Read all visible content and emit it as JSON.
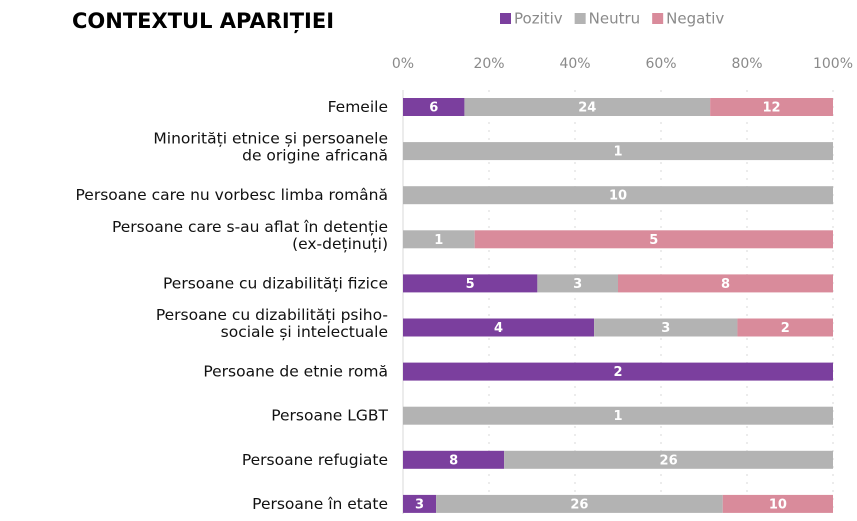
{
  "chart_data": {
    "type": "bar",
    "orientation": "horizontal",
    "stacked": "percent",
    "title": "CONTEXTUL  APARIȚIEI",
    "categories": [
      [
        "Femeile"
      ],
      [
        "Minorități etnice și persoanele",
        "de origine africană"
      ],
      [
        "Persoane care nu vorbesc limba română"
      ],
      [
        "Persoane care s-au aflat în detenție",
        "(ex-deținuți)"
      ],
      [
        "Persoane cu dizabilități fizice"
      ],
      [
        "Persoane cu dizabilități psiho-",
        "sociale și intelectuale"
      ],
      [
        "Persoane de etnie romă"
      ],
      [
        "Persoane LGBT"
      ],
      [
        "Persoane refugiate"
      ],
      [
        "Persoane în etate"
      ]
    ],
    "series": [
      {
        "name": "Pozitiv",
        "color": "#7b3f9e",
        "values": [
          6,
          null,
          null,
          null,
          5,
          4,
          2,
          null,
          8,
          3
        ]
      },
      {
        "name": "Neutru",
        "color": "#b3b3b3",
        "values": [
          24,
          1,
          10,
          1,
          3,
          3,
          null,
          1,
          26,
          26
        ]
      },
      {
        "name": "Negativ",
        "color": "#d98b9b",
        "values": [
          12,
          null,
          null,
          5,
          8,
          2,
          null,
          null,
          null,
          10
        ]
      }
    ],
    "xlim": [
      0,
      100
    ],
    "xticks": [
      {
        "value": 0,
        "label": "0%"
      },
      {
        "value": 20,
        "label": "20%"
      },
      {
        "value": 40,
        "label": "40%"
      },
      {
        "value": 60,
        "label": "60%"
      },
      {
        "value": 80,
        "label": "80%"
      },
      {
        "value": 100,
        "label": "100%"
      }
    ],
    "legend": "top"
  }
}
